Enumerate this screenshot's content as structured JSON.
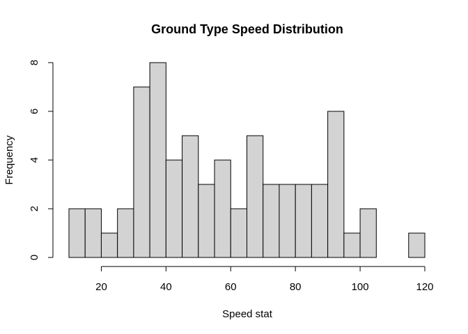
{
  "chart_data": {
    "type": "bar",
    "title": "Ground Type Speed Distribution",
    "xlabel": "Speed stat",
    "ylabel": "Frequency",
    "bin_width": 5,
    "bins": [
      {
        "start": 10,
        "end": 15,
        "count": 2
      },
      {
        "start": 15,
        "end": 20,
        "count": 2
      },
      {
        "start": 20,
        "end": 25,
        "count": 1
      },
      {
        "start": 25,
        "end": 30,
        "count": 2
      },
      {
        "start": 30,
        "end": 35,
        "count": 7
      },
      {
        "start": 35,
        "end": 40,
        "count": 8
      },
      {
        "start": 40,
        "end": 45,
        "count": 4
      },
      {
        "start": 45,
        "end": 50,
        "count": 5
      },
      {
        "start": 50,
        "end": 55,
        "count": 3
      },
      {
        "start": 55,
        "end": 60,
        "count": 4
      },
      {
        "start": 60,
        "end": 65,
        "count": 2
      },
      {
        "start": 65,
        "end": 70,
        "count": 5
      },
      {
        "start": 70,
        "end": 75,
        "count": 3
      },
      {
        "start": 75,
        "end": 80,
        "count": 3
      },
      {
        "start": 80,
        "end": 85,
        "count": 3
      },
      {
        "start": 85,
        "end": 90,
        "count": 3
      },
      {
        "start": 90,
        "end": 95,
        "count": 6
      },
      {
        "start": 95,
        "end": 100,
        "count": 1
      },
      {
        "start": 100,
        "end": 105,
        "count": 2
      },
      {
        "start": 105,
        "end": 110,
        "count": 0
      },
      {
        "start": 110,
        "end": 115,
        "count": 0
      },
      {
        "start": 115,
        "end": 120,
        "count": 1
      }
    ],
    "x_ticks": [
      20,
      40,
      60,
      80,
      100,
      120
    ],
    "y_ticks": [
      0,
      2,
      4,
      6,
      8
    ],
    "xlim": [
      10,
      120
    ],
    "ylim": [
      0,
      8
    ],
    "grid": false,
    "colors": {
      "bar_fill": "#d3d3d3",
      "bar_stroke": "#000000"
    }
  }
}
